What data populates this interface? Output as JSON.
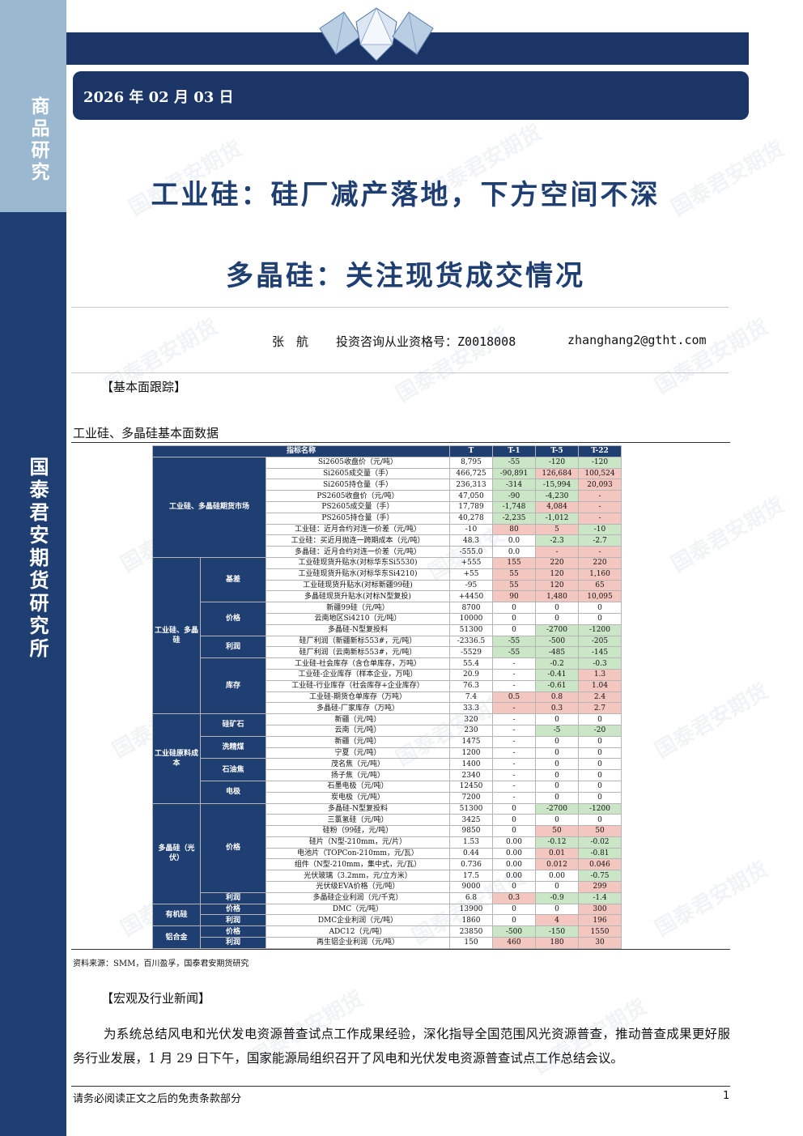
{
  "sidebar": {
    "top_label": "商品研究",
    "bottom_label": "国泰君安期货研究所"
  },
  "header": {
    "date": "2026 年 02 月 03 日"
  },
  "titles": {
    "line1": "工业硅：硅厂减产落地，下方空间不深",
    "line2": "多晶硅：关注现货成交情况"
  },
  "author": {
    "name": "张　航",
    "qualification": "投资咨询从业资格号：Z0018008",
    "email": "zhanghang2@gtht.com"
  },
  "watermark": "国泰君安期货",
  "sections": {
    "fundamental": "【基本面跟踪】",
    "macro": "【宏观及行业新闻】"
  },
  "table_title": "工业硅、多晶硅基本面数据",
  "table": {
    "headers": [
      "指标名称",
      "T",
      "T-1",
      "T-5",
      "T-22"
    ],
    "groups": {
      "futures": "工业硅、多晶硅期货市场",
      "spot": "工业硅、多晶硅",
      "basis": "基差",
      "price": "价格",
      "profit": "利润",
      "inventory": "库存",
      "cost": "工业硅原料成本",
      "silica": "硅矿石",
      "coal": "洗精煤",
      "coke": "石油焦",
      "electrode": "电极",
      "poly": "多晶硅（光伏）",
      "poly_price": "价格",
      "poly_profit": "利润",
      "organic": "有机硅",
      "org_price": "价格",
      "org_profit": "利润",
      "aluminum": "铝合金",
      "al_price": "价格",
      "al_profit": "利润"
    },
    "rows": [
      {
        "name": "Si2605收盘价（元/吨）",
        "t": "8,795",
        "t1": "-55",
        "t5": "-120",
        "t22": "-120",
        "c1": "neg",
        "c5": "neg",
        "c22": "neg"
      },
      {
        "name": "Si2605成交量（手）",
        "t": "466,725",
        "t1": "-90,891",
        "t5": "126,684",
        "t22": "100,524",
        "c1": "neg",
        "c5": "pos",
        "c22": "pos"
      },
      {
        "name": "Si2605持仓量（手）",
        "t": "236,313",
        "t1": "-314",
        "t5": "-15,994",
        "t22": "20,093",
        "c1": "neg",
        "c5": "neg",
        "c22": "pos"
      },
      {
        "name": "PS2605收盘价（元/吨）",
        "t": "47,050",
        "t1": "-90",
        "t5": "-4,230",
        "t22": "-",
        "c1": "neg",
        "c5": "neg",
        "c22": "pos"
      },
      {
        "name": "PS2605成交量（手）",
        "t": "17,789",
        "t1": "-1,748",
        "t5": "4,084",
        "t22": "-",
        "c1": "neg",
        "c5": "pos",
        "c22": "pos"
      },
      {
        "name": "PS2605持仓量（手）",
        "t": "40,278",
        "t1": "-2,235",
        "t5": "-1,012",
        "t22": "-",
        "c1": "neg",
        "c5": "neg",
        "c22": "pos"
      },
      {
        "name": "工业硅：近月合约对连一价差（元/吨）",
        "t": "-10",
        "t1": "80",
        "t5": "5",
        "t22": "-10",
        "c1": "pos",
        "c5": "pos",
        "c22": "neg"
      },
      {
        "name": "工业硅：买近月抛连一跨期成本（元/吨）",
        "t": "48.3",
        "t1": "0.0",
        "t5": "-2.3",
        "t22": "-2.7",
        "c1": "",
        "c5": "neg",
        "c22": "neg"
      },
      {
        "name": "多晶硅：近月合约对连一价差（元/吨）",
        "t": "-555.0",
        "t1": "0.0",
        "t5": "-",
        "t22": "-",
        "c1": "",
        "c5": "pos",
        "c22": "pos"
      },
      {
        "name": "工业硅现货升贴水(对标华东Si5530)",
        "t": "+555",
        "t1": "155",
        "t5": "220",
        "t22": "220",
        "c1": "pos",
        "c5": "pos",
        "c22": "pos"
      },
      {
        "name": "工业硅现货升贴水(对标华东Si4210)",
        "t": "+55",
        "t1": "55",
        "t5": "120",
        "t22": "1,160",
        "c1": "pos",
        "c5": "pos",
        "c22": "pos"
      },
      {
        "name": "工业硅现货升贴水(对标新疆99硅)",
        "t": "-95",
        "t1": "55",
        "t5": "120",
        "t22": "65",
        "c1": "pos",
        "c5": "pos",
        "c22": "pos"
      },
      {
        "name": "多晶硅现货升贴水(对标N型复投)",
        "t": "+4450",
        "t1": "90",
        "t5": "1,480",
        "t22": "10,095",
        "c1": "pos",
        "c5": "pos",
        "c22": "pos"
      },
      {
        "name": "新疆99硅（元/吨）",
        "t": "8700",
        "t1": "0",
        "t5": "0",
        "t22": "0",
        "c1": "",
        "c5": "",
        "c22": ""
      },
      {
        "name": "云南地区Si4210（元/吨）",
        "t": "10000",
        "t1": "0",
        "t5": "0",
        "t22": "0",
        "c1": "",
        "c5": "",
        "c22": ""
      },
      {
        "name": "多晶硅-N型复投料",
        "t": "51300",
        "t1": "0",
        "t5": "-2700",
        "t22": "-1200",
        "c1": "",
        "c5": "neg",
        "c22": "neg"
      },
      {
        "name": "硅厂利润（新疆新标553#，元/吨）",
        "t": "-2336.5",
        "t1": "-55",
        "t5": "-500",
        "t22": "-205",
        "c1": "neg",
        "c5": "neg",
        "c22": "neg"
      },
      {
        "name": "硅厂利润（云南新标553#，元/吨）",
        "t": "-5529",
        "t1": "-55",
        "t5": "-485",
        "t22": "-145",
        "c1": "neg",
        "c5": "neg",
        "c22": "neg"
      },
      {
        "name": "工业硅-社会库存（含仓单库存，万吨）",
        "t": "55.4",
        "t1": "-",
        "t5": "-0.2",
        "t22": "-0.3",
        "c1": "",
        "c5": "neg",
        "c22": "neg"
      },
      {
        "name": "工业硅-企业库存（样本企业，万吨）",
        "t": "20.9",
        "t1": "-",
        "t5": "-0.41",
        "t22": "1.3",
        "c1": "",
        "c5": "neg",
        "c22": "pos"
      },
      {
        "name": "工业硅-行业库存（社会库存+企业库存）",
        "t": "76.3",
        "t1": "-",
        "t5": "-0.61",
        "t22": "1.04",
        "c1": "",
        "c5": "neg",
        "c22": "pos"
      },
      {
        "name": "工业硅-期货仓单库存（万吨）",
        "t": "7.4",
        "t1": "0.5",
        "t5": "0.8",
        "t22": "2.4",
        "c1": "pos",
        "c5": "pos",
        "c22": "pos"
      },
      {
        "name": "多晶硅-厂家库存（万吨）",
        "t": "33.3",
        "t1": "-",
        "t5": "0.3",
        "t22": "2.7",
        "c1": "pos",
        "c5": "pos",
        "c22": "pos"
      },
      {
        "name": "新疆（元/吨）",
        "t": "320",
        "t1": "-",
        "t5": "0",
        "t22": "0",
        "c1": "",
        "c5": "",
        "c22": ""
      },
      {
        "name": "云南（元/吨）",
        "t": "230",
        "t1": "-",
        "t5": "-5",
        "t22": "-20",
        "c1": "",
        "c5": "neg",
        "c22": "neg"
      },
      {
        "name": "新疆（元/吨）",
        "t": "1475",
        "t1": "-",
        "t5": "0",
        "t22": "0",
        "c1": "",
        "c5": "",
        "c22": ""
      },
      {
        "name": "宁夏（元/吨）",
        "t": "1200",
        "t1": "-",
        "t5": "0",
        "t22": "0",
        "c1": "",
        "c5": "",
        "c22": ""
      },
      {
        "name": "茂名焦（元/吨）",
        "t": "1400",
        "t1": "-",
        "t5": "0",
        "t22": "0",
        "c1": "",
        "c5": "",
        "c22": ""
      },
      {
        "name": "扬子焦（元/吨）",
        "t": "2340",
        "t1": "-",
        "t5": "0",
        "t22": "0",
        "c1": "",
        "c5": "",
        "c22": ""
      },
      {
        "name": "石墨电极（元/吨）",
        "t": "12450",
        "t1": "-",
        "t5": "0",
        "t22": "0",
        "c1": "",
        "c5": "",
        "c22": ""
      },
      {
        "name": "炭电极（元/吨）",
        "t": "7200",
        "t1": "-",
        "t5": "0",
        "t22": "0",
        "c1": "",
        "c5": "",
        "c22": ""
      },
      {
        "name": "多晶硅-N型复投料",
        "t": "51300",
        "t1": "0",
        "t5": "-2700",
        "t22": "-1200",
        "c1": "",
        "c5": "neg",
        "c22": "neg"
      },
      {
        "name": "三氯氢硅（元/吨）",
        "t": "3425",
        "t1": "0",
        "t5": "0",
        "t22": "0",
        "c1": "",
        "c5": "",
        "c22": ""
      },
      {
        "name": "硅粉（99硅，元/吨）",
        "t": "9850",
        "t1": "0",
        "t5": "50",
        "t22": "50",
        "c1": "",
        "c5": "pos",
        "c22": "pos"
      },
      {
        "name": "硅片（N型-210mm，元/片）",
        "t": "1.53",
        "t1": "0.00",
        "t5": "-0.12",
        "t22": "-0.02",
        "c1": "",
        "c5": "neg",
        "c22": "neg"
      },
      {
        "name": "电池片（TOPCon-210mm，元/瓦）",
        "t": "0.44",
        "t1": "0.00",
        "t5": "0.01",
        "t22": "-0.81",
        "c1": "",
        "c5": "pos",
        "c22": "neg"
      },
      {
        "name": "组件（N型-210mm，集中式，元/瓦）",
        "t": "0.736",
        "t1": "0.00",
        "t5": "0.012",
        "t22": "0.046",
        "c1": "",
        "c5": "pos",
        "c22": "pos"
      },
      {
        "name": "光伏玻璃（3.2mm，元/立方米）",
        "t": "17.5",
        "t1": "0.00",
        "t5": "0.00",
        "t22": "-0.75",
        "c1": "",
        "c5": "",
        "c22": "neg"
      },
      {
        "name": "光伏级EVA价格（元/吨）",
        "t": "9000",
        "t1": "0",
        "t5": "0",
        "t22": "299",
        "c1": "",
        "c5": "",
        "c22": "pos"
      },
      {
        "name": "多晶硅企业利润（元/千克）",
        "t": "6.8",
        "t1": "0.3",
        "t5": "-0.9",
        "t22": "-1.4",
        "c1": "pos",
        "c5": "neg",
        "c22": "neg"
      },
      {
        "name": "DMC（元/吨）",
        "t": "13900",
        "t1": "0",
        "t5": "0",
        "t22": "300",
        "c1": "",
        "c5": "",
        "c22": "pos"
      },
      {
        "name": "DMC企业利润（元/吨）",
        "t": "1860",
        "t1": "0",
        "t5": "4",
        "t22": "196",
        "c1": "",
        "c5": "pos",
        "c22": "pos"
      },
      {
        "name": "ADC12（元/吨）",
        "t": "23850",
        "t1": "-500",
        "t5": "-150",
        "t22": "1550",
        "c1": "neg",
        "c5": "neg",
        "c22": "pos"
      },
      {
        "name": "再生铝企业利润（元/吨）",
        "t": "150",
        "t1": "460",
        "t5": "180",
        "t22": "30",
        "c1": "pos",
        "c5": "pos",
        "c22": "pos"
      }
    ]
  },
  "source": "资料来源：SMM，百川盈孚，国泰君安期货研究",
  "paragraph": "为系统总结风电和光伏发电资源普查试点工作成果经验，深化指导全国范围风光资源普查，推动普查成果更好服务行业发展，1 月 29 日下午，国家能源局组织召开了风电和光伏发电资源普查试点工作总结会议。",
  "footer": {
    "disclaimer": "请务必阅读正文之后的免责条款部分",
    "page": "1"
  },
  "colors": {
    "navy": "#1f3f73",
    "sidebar_light": "#9ab8cf",
    "positive_cell": "#f4c6c0",
    "negative_cell": "#cbe6c6"
  }
}
